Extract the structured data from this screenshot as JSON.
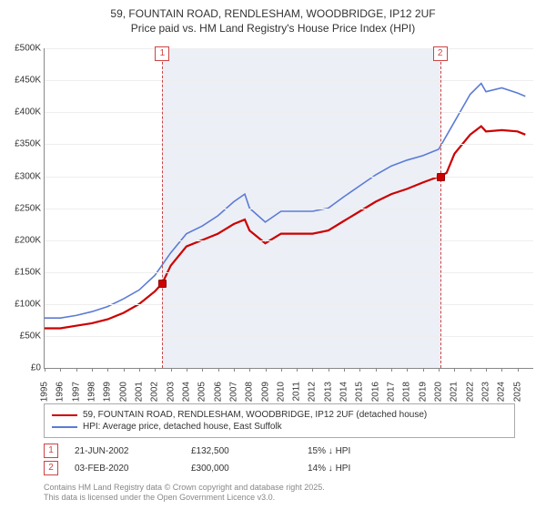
{
  "title_line1": "59, FOUNTAIN ROAD, RENDLESHAM, WOODBRIDGE, IP12 2UF",
  "title_line2": "Price paid vs. HM Land Registry's House Price Index (HPI)",
  "chart": {
    "type": "line",
    "background_color": "#ffffff",
    "shaded_color": "rgba(200,210,230,0.35)",
    "grid_color": "#eeeeee",
    "axis_color": "#888888",
    "x_start_year": 1995,
    "x_end_year": 2026,
    "x_ticks": [
      1995,
      1996,
      1997,
      1998,
      1999,
      2000,
      2001,
      2002,
      2003,
      2004,
      2005,
      2006,
      2007,
      2008,
      2009,
      2010,
      2011,
      2012,
      2013,
      2014,
      2015,
      2016,
      2017,
      2018,
      2019,
      2020,
      2021,
      2022,
      2023,
      2024,
      2025
    ],
    "y_min": 0,
    "y_max": 500000,
    "y_tick_step": 50000,
    "y_tick_labels": [
      "£0",
      "£50K",
      "£100K",
      "£150K",
      "£200K",
      "£250K",
      "£300K",
      "£350K",
      "£400K",
      "£450K",
      "£500K"
    ],
    "series": [
      {
        "name": "59, FOUNTAIN ROAD, RENDLESHAM, WOODBRIDGE, IP12 2UF (detached house)",
        "color": "#cc0000",
        "line_width": 2.2,
        "data": [
          [
            1995,
            62000
          ],
          [
            1996,
            62000
          ],
          [
            1997,
            66000
          ],
          [
            1998,
            70000
          ],
          [
            1999,
            76000
          ],
          [
            2000,
            86000
          ],
          [
            2001,
            100000
          ],
          [
            2002,
            120000
          ],
          [
            2002.47,
            132500
          ],
          [
            2003,
            160000
          ],
          [
            2004,
            190000
          ],
          [
            2005,
            200000
          ],
          [
            2006,
            210000
          ],
          [
            2007,
            225000
          ],
          [
            2007.7,
            232000
          ],
          [
            2008,
            215000
          ],
          [
            2009,
            195000
          ],
          [
            2010,
            210000
          ],
          [
            2011,
            210000
          ],
          [
            2012,
            210000
          ],
          [
            2013,
            215000
          ],
          [
            2014,
            230000
          ],
          [
            2015,
            245000
          ],
          [
            2016,
            260000
          ],
          [
            2017,
            272000
          ],
          [
            2018,
            280000
          ],
          [
            2019,
            290000
          ],
          [
            2020.09,
            300000
          ],
          [
            2020.5,
            305000
          ],
          [
            2021,
            335000
          ],
          [
            2022,
            365000
          ],
          [
            2022.7,
            378000
          ],
          [
            2023,
            370000
          ],
          [
            2024,
            372000
          ],
          [
            2025,
            370000
          ],
          [
            2025.5,
            365000
          ]
        ]
      },
      {
        "name": "HPI: Average price, detached house, East Suffolk",
        "color": "#5b7bd5",
        "line_width": 1.6,
        "data": [
          [
            1995,
            78000
          ],
          [
            1996,
            78000
          ],
          [
            1997,
            82000
          ],
          [
            1998,
            88000
          ],
          [
            1999,
            96000
          ],
          [
            2000,
            108000
          ],
          [
            2001,
            122000
          ],
          [
            2002,
            145000
          ],
          [
            2003,
            180000
          ],
          [
            2004,
            210000
          ],
          [
            2005,
            222000
          ],
          [
            2006,
            238000
          ],
          [
            2007,
            260000
          ],
          [
            2007.7,
            272000
          ],
          [
            2008,
            250000
          ],
          [
            2009,
            228000
          ],
          [
            2010,
            245000
          ],
          [
            2011,
            245000
          ],
          [
            2012,
            245000
          ],
          [
            2013,
            250000
          ],
          [
            2014,
            268000
          ],
          [
            2015,
            285000
          ],
          [
            2016,
            302000
          ],
          [
            2017,
            316000
          ],
          [
            2018,
            325000
          ],
          [
            2019,
            332000
          ],
          [
            2020,
            342000
          ],
          [
            2021,
            385000
          ],
          [
            2022,
            428000
          ],
          [
            2022.7,
            445000
          ],
          [
            2023,
            432000
          ],
          [
            2024,
            438000
          ],
          [
            2025,
            430000
          ],
          [
            2025.5,
            425000
          ]
        ]
      }
    ],
    "shaded_from_year": 2002.47,
    "shaded_to_year": 2020.09,
    "markers": [
      {
        "label": "1",
        "year": 2002.47,
        "price": 132500
      },
      {
        "label": "2",
        "year": 2020.09,
        "price": 300000
      }
    ]
  },
  "legend": [
    {
      "color": "#cc0000",
      "label": "59, FOUNTAIN ROAD, RENDLESHAM, WOODBRIDGE, IP12 2UF (detached house)"
    },
    {
      "color": "#5b7bd5",
      "label": "HPI: Average price, detached house, East Suffolk"
    }
  ],
  "events": [
    {
      "num": "1",
      "date": "21-JUN-2002",
      "price": "£132,500",
      "delta": "15% ↓ HPI"
    },
    {
      "num": "2",
      "date": "03-FEB-2020",
      "price": "£300,000",
      "delta": "14% ↓ HPI"
    }
  ],
  "attribution_line1": "Contains HM Land Registry data © Crown copyright and database right 2025.",
  "attribution_line2": "This data is licensed under the Open Government Licence v3.0."
}
